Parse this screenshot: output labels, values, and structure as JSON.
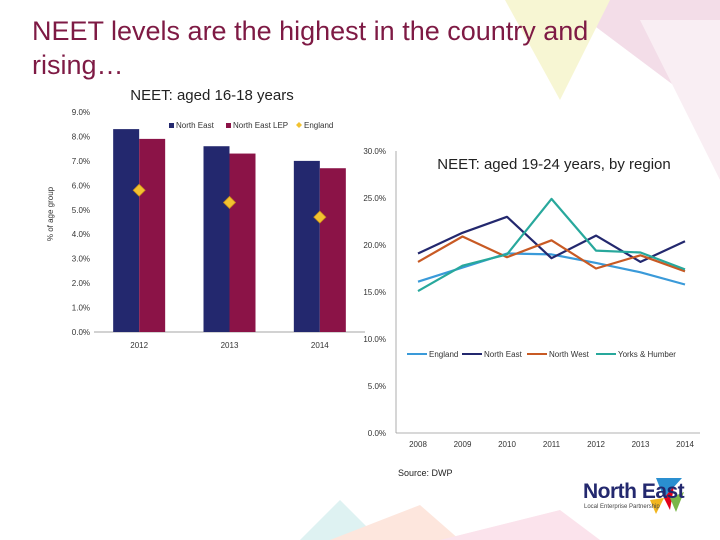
{
  "slide": {
    "title_line1": "NEET levels are the highest in the country and",
    "title_line2": "rising…",
    "source": "Source: DWP"
  },
  "logo": {
    "name": "North East",
    "tagline": "Local Enterprise Partnership"
  },
  "colors": {
    "title": "#7e1a44",
    "north_east": "#23286e",
    "north_east_lep": "#8b1347",
    "england_marker": "#f2c230",
    "england_line": "#3a9ad9",
    "north_west": "#c85a24",
    "yorks_humber": "#28a89c"
  },
  "chart_data": [
    {
      "type": "bar",
      "title": "NEET: aged 16-18 years",
      "ylabel": "% of age group",
      "xlabel": "",
      "ylim": [
        0,
        9
      ],
      "yticks": [
        "0.0%",
        "1.0%",
        "2.0%",
        "3.0%",
        "4.0%",
        "5.0%",
        "6.0%",
        "7.0%",
        "8.0%",
        "9.0%"
      ],
      "categories": [
        "2012",
        "2013",
        "2014"
      ],
      "series": [
        {
          "name": "North East",
          "kind": "bar",
          "values": [
            8.3,
            7.6,
            7.0
          ]
        },
        {
          "name": "North East LEP",
          "kind": "bar",
          "values": [
            7.9,
            7.3,
            6.7
          ]
        },
        {
          "name": "England",
          "kind": "marker",
          "values": [
            5.8,
            5.3,
            4.7
          ]
        }
      ],
      "legend": "top"
    },
    {
      "type": "line",
      "title": "NEET: aged 19-24 years, by region",
      "xlabel": "",
      "ylabel": "",
      "ylim": [
        0,
        30
      ],
      "yticks": [
        "0.0%",
        "5.0%",
        "10.0%",
        "15.0%",
        "20.0%",
        "25.0%",
        "30.0%"
      ],
      "x": [
        "2008",
        "2009",
        "2010",
        "2011",
        "2012",
        "2013",
        "2014"
      ],
      "series": [
        {
          "name": "England",
          "values": [
            16.1,
            17.6,
            19.1,
            19.0,
            18.1,
            17.1,
            15.8
          ]
        },
        {
          "name": "North East",
          "values": [
            19.1,
            21.3,
            23.0,
            18.6,
            21.0,
            18.2,
            20.4
          ]
        },
        {
          "name": "North West",
          "values": [
            18.2,
            20.9,
            18.7,
            20.5,
            17.5,
            18.9,
            17.2
          ]
        },
        {
          "name": "Yorks & Humber",
          "values": [
            15.1,
            17.8,
            19.0,
            24.9,
            19.4,
            19.2,
            17.4
          ]
        }
      ],
      "legend": "bottom"
    }
  ]
}
